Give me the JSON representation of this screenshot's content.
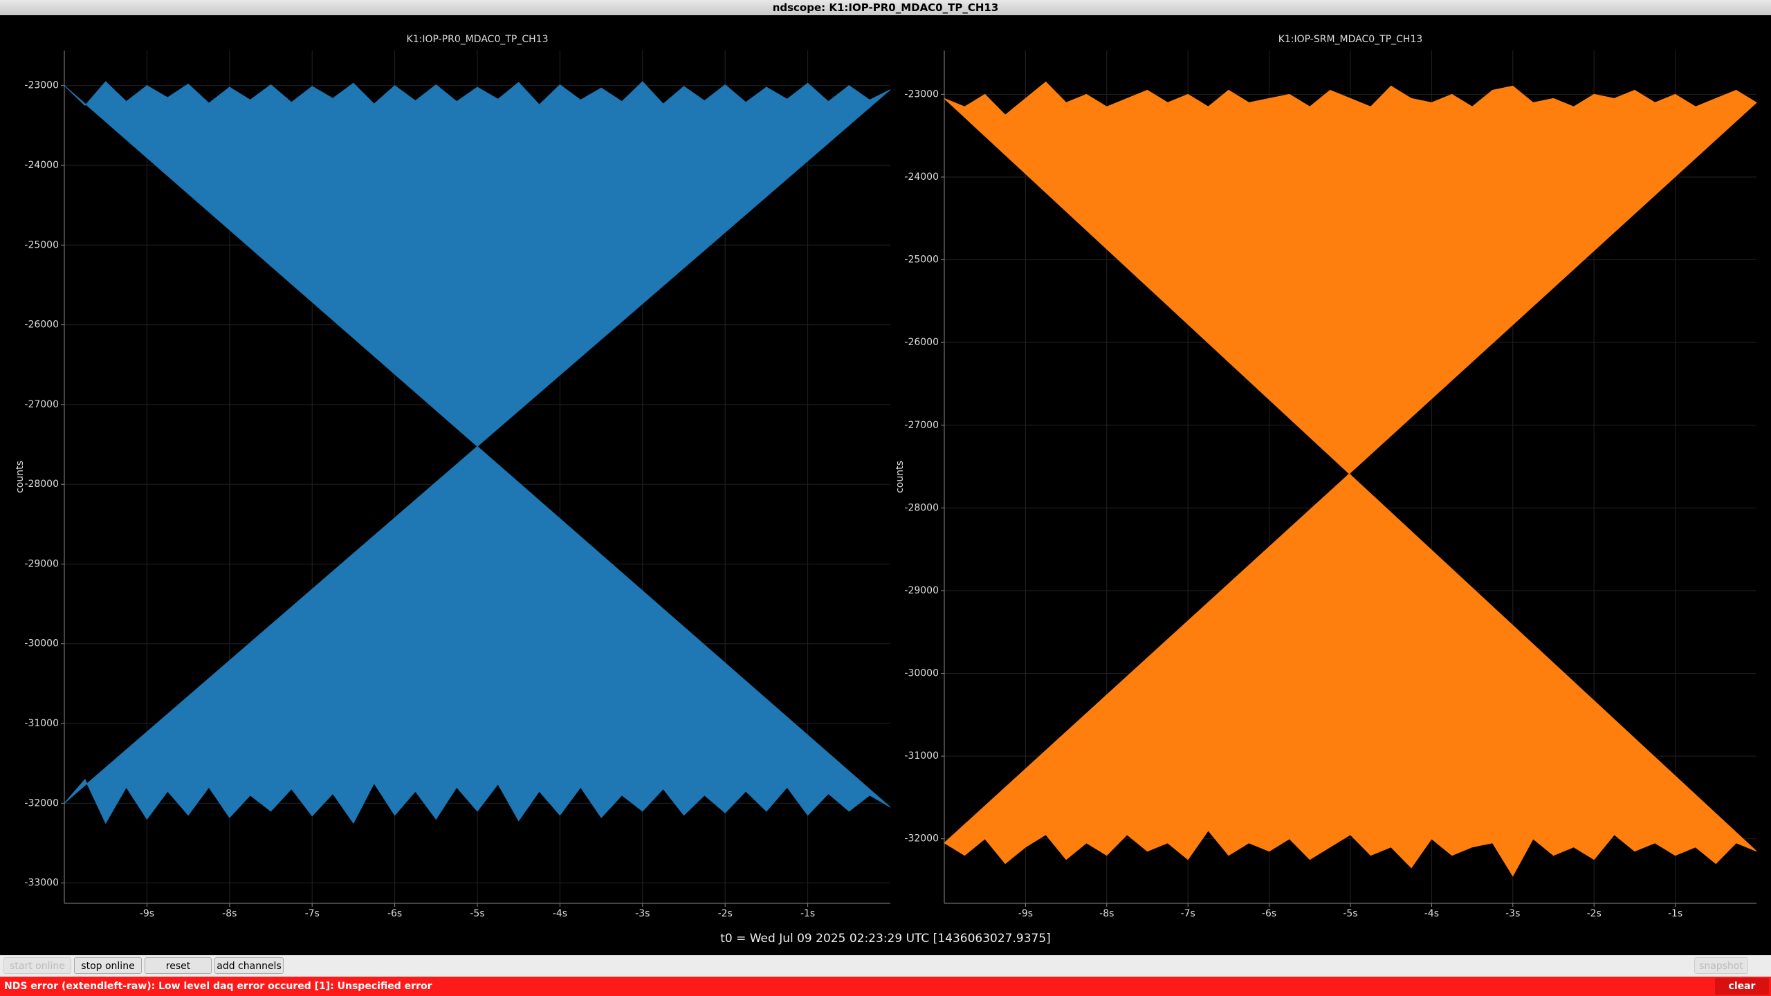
{
  "window": {
    "title": "ndscope: K1:IOP-PR0_MDAC0_TP_CH13"
  },
  "chart_data": [
    {
      "type": "band",
      "title": "K1:IOP-PR0_MDAC0_TP_CH13",
      "y_label": "counts",
      "color": "#1f77b4",
      "grid": true,
      "xlim": [
        -10,
        0
      ],
      "xticks": [
        {
          "value": -9,
          "label": "-9s"
        },
        {
          "value": -8,
          "label": "-8s"
        },
        {
          "value": -7,
          "label": "-7s"
        },
        {
          "value": -6,
          "label": "-6s"
        },
        {
          "value": -5,
          "label": "-5s"
        },
        {
          "value": -4,
          "label": "-4s"
        },
        {
          "value": -3,
          "label": "-3s"
        },
        {
          "value": -2,
          "label": "-2s"
        },
        {
          "value": -1,
          "label": "-1s"
        }
      ],
      "ylim": [
        -33255,
        -22560
      ],
      "yticks": [
        -33000,
        -32000,
        -31000,
        -30000,
        -29000,
        -28000,
        -27000,
        -26000,
        -25000,
        -24000,
        -23000
      ],
      "x": [
        -10,
        -9.75,
        -9.5,
        -9.25,
        -9,
        -8.75,
        -8.5,
        -8.25,
        -8,
        -7.75,
        -7.5,
        -7.25,
        -7,
        -6.75,
        -6.5,
        -6.25,
        -6,
        -5.75,
        -5.5,
        -5.25,
        -5,
        -4.75,
        -4.5,
        -4.25,
        -4,
        -3.75,
        -3.5,
        -3.25,
        -3,
        -2.75,
        -2.5,
        -2.25,
        -2,
        -1.75,
        -1.5,
        -1.25,
        -1,
        -0.75,
        -0.5,
        -0.25,
        0
      ],
      "upper": [
        -23000,
        -23250,
        -22950,
        -23200,
        -23000,
        -23150,
        -22980,
        -23220,
        -23020,
        -23180,
        -22990,
        -23210,
        -23010,
        -23160,
        -22970,
        -23230,
        -23000,
        -23190,
        -22990,
        -23200,
        -23020,
        -23170,
        -22960,
        -23240,
        -22990,
        -23180,
        -23030,
        -23200,
        -22950,
        -23230,
        -23010,
        -23190,
        -22990,
        -23210,
        -23020,
        -23170,
        -22970,
        -23200,
        -23000,
        -23180,
        -23050
      ],
      "lower": [
        -32000,
        -31700,
        -32250,
        -31800,
        -32200,
        -31850,
        -32150,
        -31800,
        -32180,
        -31900,
        -32100,
        -31820,
        -32160,
        -31880,
        -32250,
        -31750,
        -32150,
        -31850,
        -32200,
        -31800,
        -32100,
        -31760,
        -32220,
        -31850,
        -32150,
        -31800,
        -32180,
        -31900,
        -32100,
        -31820,
        -32150,
        -31900,
        -32120,
        -31850,
        -32100,
        -31800,
        -32150,
        -31880,
        -32100,
        -31900,
        -32050
      ]
    },
    {
      "type": "band",
      "title": "K1:IOP-SRM_MDAC0_TP_CH13",
      "y_label": "counts",
      "color": "#ff7f0e",
      "grid": true,
      "xlim": [
        -10,
        0
      ],
      "xticks": [
        {
          "value": -9,
          "label": "-9s"
        },
        {
          "value": -8,
          "label": "-8s"
        },
        {
          "value": -7,
          "label": "-7s"
        },
        {
          "value": -6,
          "label": "-6s"
        },
        {
          "value": -5,
          "label": "-5s"
        },
        {
          "value": -4,
          "label": "-4s"
        },
        {
          "value": -3,
          "label": "-3s"
        },
        {
          "value": -2,
          "label": "-2s"
        },
        {
          "value": -1,
          "label": "-1s"
        }
      ],
      "ylim": [
        -32780,
        -22470
      ],
      "yticks": [
        -32000,
        -31000,
        -30000,
        -29000,
        -28000,
        -27000,
        -26000,
        -25000,
        -24000,
        -23000
      ],
      "x": [
        -10,
        -9.75,
        -9.5,
        -9.25,
        -9,
        -8.75,
        -8.5,
        -8.25,
        -8,
        -7.75,
        -7.5,
        -7.25,
        -7,
        -6.75,
        -6.5,
        -6.25,
        -6,
        -5.75,
        -5.5,
        -5.25,
        -5,
        -4.75,
        -4.5,
        -4.25,
        -4,
        -3.75,
        -3.5,
        -3.25,
        -3,
        -2.75,
        -2.5,
        -2.25,
        -2,
        -1.75,
        -1.5,
        -1.25,
        -1,
        -0.75,
        -0.5,
        -0.25,
        0
      ],
      "upper": [
        -23050,
        -23150,
        -23000,
        -23250,
        -23050,
        -22850,
        -23100,
        -23000,
        -23150,
        -23050,
        -22950,
        -23100,
        -23000,
        -23150,
        -22950,
        -23100,
        -23050,
        -23000,
        -23150,
        -22950,
        -23050,
        -23150,
        -22900,
        -23050,
        -23100,
        -23000,
        -23150,
        -22950,
        -22900,
        -23100,
        -23050,
        -23150,
        -23000,
        -23050,
        -22950,
        -23100,
        -23000,
        -23150,
        -23050,
        -22950,
        -23100
      ],
      "lower": [
        -32050,
        -32200,
        -32000,
        -32300,
        -32100,
        -31950,
        -32250,
        -32050,
        -32200,
        -31950,
        -32150,
        -32050,
        -32250,
        -31900,
        -32200,
        -32050,
        -32150,
        -32000,
        -32250,
        -32100,
        -31950,
        -32200,
        -32100,
        -32350,
        -32000,
        -32200,
        -32100,
        -32050,
        -32450,
        -32000,
        -32200,
        -32100,
        -32250,
        -31950,
        -32150,
        -32050,
        -32200,
        -32100,
        -32300,
        -32050,
        -32150
      ]
    }
  ],
  "time_label": "t0 = Wed Jul 09 2025 02:23:29 UTC [1436063027.9375]",
  "toolbar": {
    "start_online": "start online",
    "stop_online": "stop online",
    "reset": "reset",
    "add_channels": "add channels",
    "snapshot": "snapshot"
  },
  "status": {
    "message": "NDS error (extendleft-raw): Low level daq error occured [1]: Unspecified error",
    "clear": "clear"
  }
}
